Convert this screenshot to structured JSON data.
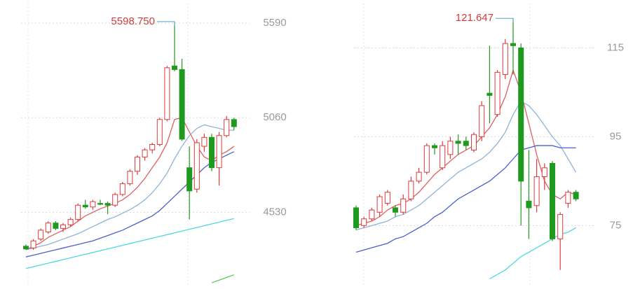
{
  "chart_data": [
    {
      "type": "candlestick",
      "max_label": "5598.750",
      "up_color": "#e03a3a",
      "down_color": "#1f9a1f",
      "grid": true,
      "ylim": [
        4120,
        5700
      ],
      "yticks": [
        4530,
        5060,
        5590
      ],
      "open": [
        4340,
        4330,
        4380,
        4420,
        4470,
        4440,
        4460,
        4490,
        4570,
        4560,
        4580,
        4580,
        4570,
        4630,
        4690,
        4760,
        4840,
        4880,
        4910,
        5050,
        5350,
        5330,
        4780,
        4660,
        4900,
        4950,
        4780,
        4960,
        5050
      ],
      "high": [
        4350,
        4380,
        4440,
        4480,
        4480,
        4470,
        4500,
        4580,
        4600,
        4600,
        4600,
        4590,
        4640,
        4700,
        4770,
        4850,
        4890,
        4920,
        5060,
        5350,
        5598.75,
        5390,
        4900,
        4940,
        4970,
        4970,
        4980,
        5070,
        5060
      ],
      "low": [
        4320,
        4320,
        4370,
        4410,
        4430,
        4420,
        4450,
        4480,
        4550,
        4545,
        4570,
        4520,
        4560,
        4620,
        4680,
        4740,
        4820,
        4860,
        4900,
        5040,
        5320,
        4930,
        4490,
        4640,
        4870,
        4760,
        4680,
        4950,
        4990
      ],
      "close": [
        4325,
        4370,
        4430,
        4470,
        4440,
        4460,
        4490,
        4570,
        4560,
        4590,
        4575,
        4570,
        4630,
        4690,
        4760,
        4840,
        4880,
        4910,
        5050,
        5340,
        5330,
        4940,
        4650,
        4920,
        4950,
        4780,
        4960,
        5050,
        5010
      ],
      "series": [
        {
          "color": "#e06060",
          "values": [
            4320,
            4340,
            4360,
            4390,
            4410,
            4430,
            4450,
            4480,
            4510,
            4530,
            4550,
            4565,
            4580,
            4600,
            4630,
            4670,
            4720,
            4780,
            4840,
            4920,
            5050,
            5060,
            4980,
            4900,
            4840,
            4820,
            4850,
            4870,
            4900
          ]
        },
        {
          "color": "#8fb4d8",
          "values": [
            4320,
            4330,
            4340,
            4350,
            4365,
            4380,
            4395,
            4410,
            4430,
            4450,
            4470,
            4490,
            4505,
            4525,
            4545,
            4570,
            4600,
            4640,
            4690,
            4750,
            4830,
            4900,
            4960,
            5000,
            5020,
            5010,
            5000,
            4990,
            4990
          ]
        },
        {
          "color": "#4a5fd0",
          "values": [
            4280,
            4290,
            4300,
            4310,
            4320,
            4330,
            4340,
            4350,
            4360,
            4370,
            4385,
            4400,
            4415,
            4430,
            4450,
            4470,
            4490,
            4510,
            4540,
            4580,
            4620,
            4660,
            4700,
            4740,
            4780,
            4810,
            4830,
            4850,
            4870
          ]
        },
        {
          "color": "#4fd8e0",
          "values": [
            4215,
            4225,
            4235,
            4245,
            4255,
            4265,
            4275,
            4285,
            4295,
            4305,
            4315,
            4325,
            4335,
            4345,
            4355,
            4365,
            4375,
            4385,
            4395,
            4405,
            4415,
            4425,
            4435,
            4445,
            4455,
            4465,
            4475,
            4485,
            4495
          ]
        },
        {
          "color": "#5cc85c",
          "values": [
            null,
            null,
            null,
            null,
            null,
            null,
            null,
            null,
            null,
            null,
            null,
            null,
            null,
            null,
            null,
            null,
            null,
            null,
            null,
            null,
            null,
            null,
            null,
            null,
            null,
            4135,
            4150,
            4165,
            4180
          ]
        }
      ]
    },
    {
      "type": "candlestick",
      "max_label": "121.647",
      "up_color": "#e03a3a",
      "down_color": "#1f9a1f",
      "grid": true,
      "ylim": [
        61.5,
        125
      ],
      "yticks": [
        75,
        95,
        115
      ],
      "open": [
        79,
        75,
        76.5,
        78,
        80,
        79,
        78,
        81,
        85,
        87,
        93,
        88,
        91,
        94,
        94,
        92,
        95,
        104.8,
        100,
        109,
        116,
        115,
        80.5,
        79.5,
        86,
        89,
        72,
        80,
        82.5
      ],
      "high": [
        79.5,
        77,
        79,
        82,
        83,
        79.5,
        82,
        86,
        88,
        93.5,
        93.5,
        94,
        95,
        95.5,
        95,
        96,
        103,
        115.5,
        110,
        117,
        121.647,
        116,
        92,
        90,
        89,
        89.5,
        78,
        83,
        83
      ],
      "low": [
        74,
        74.5,
        76,
        77,
        79.5,
        77,
        77.5,
        80.5,
        84.5,
        86.5,
        91,
        87.5,
        90,
        91,
        92,
        91.5,
        94,
        98,
        99.5,
        108,
        109,
        75,
        72,
        78,
        83,
        71.5,
        65,
        79,
        80.5
      ],
      "close": [
        74.5,
        76.5,
        78.5,
        81.5,
        82.5,
        78,
        81,
        85,
        87,
        93,
        92.5,
        93,
        94,
        93.5,
        93,
        95.5,
        102,
        104.3,
        109.5,
        116,
        115.5,
        85,
        79,
        86,
        88,
        72,
        77.5,
        82.5,
        81
      ],
      "series": [
        {
          "color": "#e06060",
          "values": [
            75,
            75.5,
            76,
            77,
            78.5,
            79.5,
            80,
            81,
            82.5,
            84.5,
            86.5,
            88,
            89.5,
            91,
            92,
            93,
            95,
            97,
            100,
            104,
            110,
            105,
            98,
            91,
            85,
            82,
            81,
            82.5,
            82
          ]
        },
        {
          "color": "#8fb4d8",
          "values": [
            74,
            74.5,
            75,
            75.5,
            76,
            77,
            77.5,
            78.5,
            79.5,
            81,
            82.5,
            84,
            85.5,
            87,
            88,
            89,
            90,
            91.5,
            93.5,
            96,
            100,
            103,
            102,
            100,
            97.5,
            95,
            93,
            90,
            87
          ]
        },
        {
          "color": "#4a5fd0",
          "values": [
            69,
            69.5,
            70,
            70.5,
            71,
            72,
            72.5,
            73.5,
            74.5,
            75.5,
            77,
            78,
            79.5,
            81,
            82,
            83,
            84,
            85,
            86.5,
            88,
            90,
            92,
            92.5,
            93,
            93,
            93,
            92.5,
            92.5,
            92.5
          ]
        },
        {
          "color": "#4fd8e0",
          "values": [
            null,
            null,
            null,
            null,
            null,
            null,
            null,
            null,
            null,
            null,
            null,
            null,
            null,
            null,
            null,
            null,
            null,
            63,
            64,
            65,
            66.5,
            68,
            69,
            70,
            71,
            72,
            73,
            73.5,
            74.5
          ]
        }
      ]
    }
  ]
}
